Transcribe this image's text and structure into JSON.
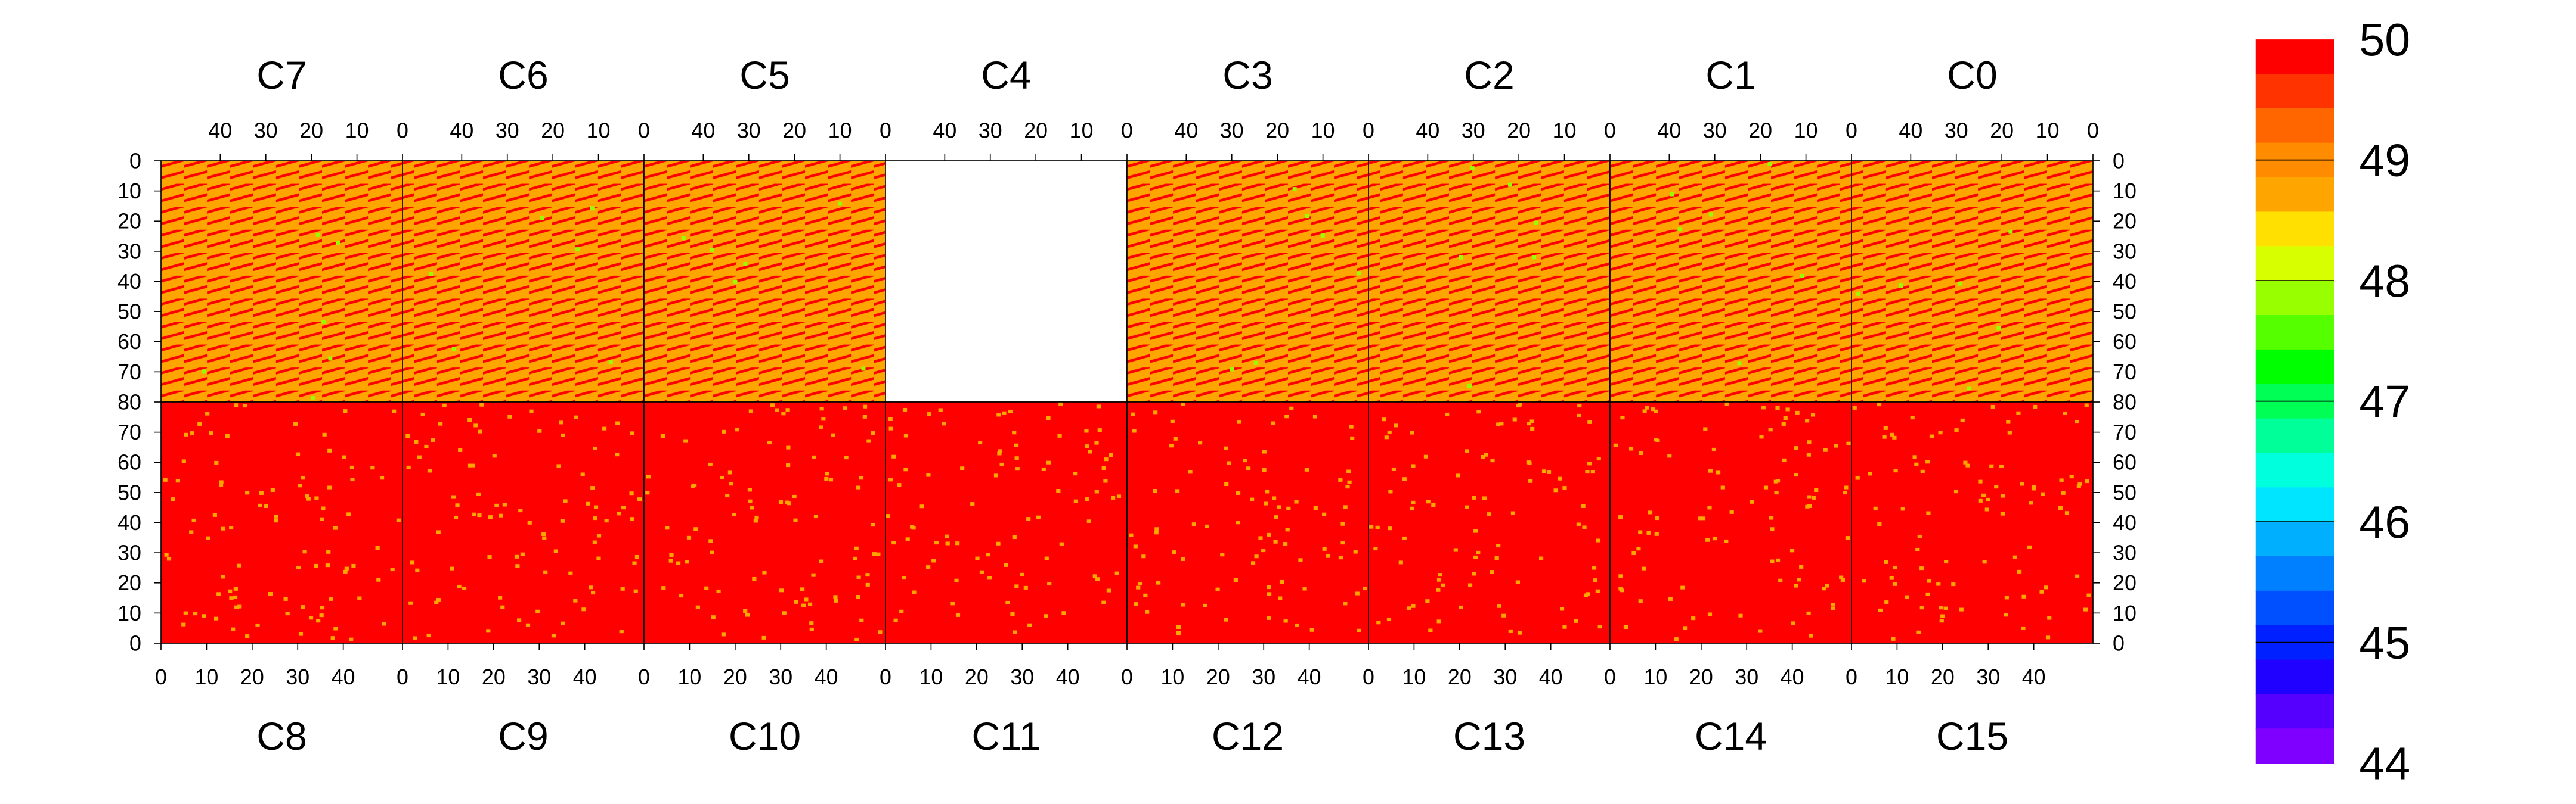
{
  "chart_data": {
    "type": "heatmap",
    "title": "",
    "xlabel": "",
    "ylabel": "",
    "top_panels": {
      "labels": [
        "C7",
        "C6",
        "C5",
        "C4",
        "C3",
        "C2",
        "C1",
        "C0"
      ],
      "x_ticks": [
        "40",
        "30",
        "20",
        "10",
        "0"
      ],
      "x_range": [
        0,
        53
      ],
      "x_direction": "descending",
      "y_ticks": [
        "0",
        "10",
        "20",
        "30",
        "40",
        "50",
        "60",
        "70",
        "80"
      ],
      "y_range": [
        0,
        80
      ],
      "y_direction": "descending",
      "typical_value": 49,
      "pattern": "diagonal stripes of 50 on a 49 background",
      "empty_panels": [
        "C4"
      ]
    },
    "bottom_panels": {
      "labels": [
        "C8",
        "C9",
        "C10",
        "C11",
        "C12",
        "C13",
        "C14",
        "C15"
      ],
      "x_ticks": [
        "0",
        "10",
        "20",
        "30",
        "40"
      ],
      "x_range": [
        0,
        53
      ],
      "x_direction": "ascending",
      "y_ticks": [
        "70",
        "60",
        "50",
        "40",
        "30",
        "20",
        "10",
        "0"
      ],
      "y_range": [
        0,
        80
      ],
      "y_direction": "ascending",
      "typical_value": 50,
      "pattern": "mostly 50 with scattered 49 cells"
    },
    "colorbar": {
      "min": 44,
      "max": 50,
      "ticks": [
        "50",
        "49",
        "48",
        "47",
        "46",
        "45",
        "44"
      ],
      "colors": [
        "#ff0000",
        "#ff3300",
        "#ff6600",
        "#ff8c00",
        "#ffa500",
        "#ffe000",
        "#d8ff00",
        "#98ff00",
        "#55ff00",
        "#00ff00",
        "#00ff55",
        "#00ff99",
        "#00ffdd",
        "#00e5ff",
        "#00b0ff",
        "#0080ff",
        "#0050ff",
        "#0020ff",
        "#2000ff",
        "#5500ff",
        "#8000ff"
      ]
    },
    "colors": {
      "value_50": "#ff0000",
      "value_49": "#ffa500",
      "value_48": "#98ff00",
      "empty": "#ffffff"
    },
    "grid": false
  }
}
